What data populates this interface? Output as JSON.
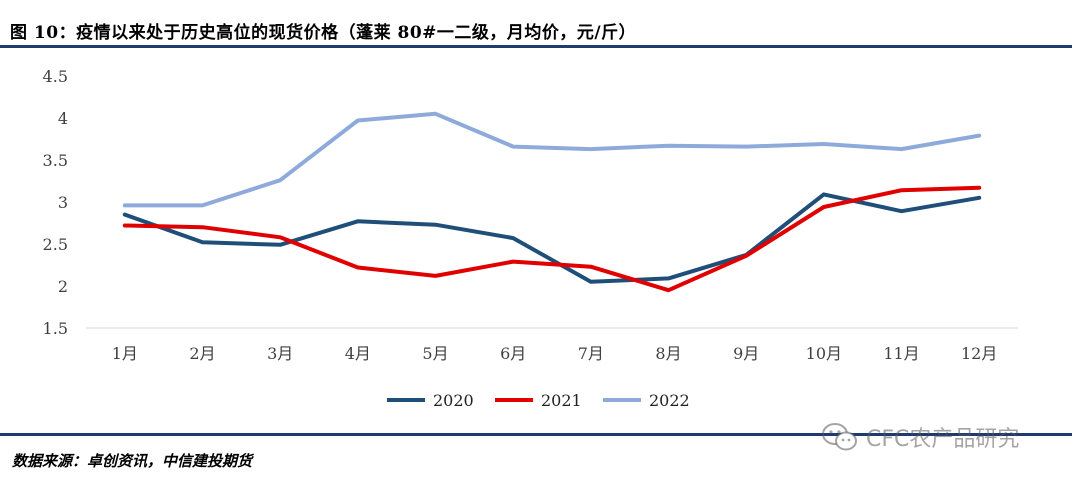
{
  "header": {
    "title": "图 10：疫情以来处于历史高位的现货价格（蓬莱 80#一二级，月均价，元/斤）"
  },
  "footer": {
    "source": "数据来源：卓创资讯，中信建投期货",
    "watermark": "CFC农产品研究"
  },
  "chart_data": {
    "type": "line",
    "title": "",
    "xlabel": "",
    "ylabel": "",
    "categories": [
      "1月",
      "2月",
      "3月",
      "4月",
      "5月",
      "6月",
      "7月",
      "8月",
      "9月",
      "10月",
      "11月",
      "12月"
    ],
    "ylim": [
      1.5,
      4.5
    ],
    "yticks": [
      1.5,
      2,
      2.5,
      3,
      3.5,
      4,
      4.5
    ],
    "ytick_labels": [
      "1.5",
      "2",
      "2.5",
      "3",
      "3.5",
      "4",
      "4.5"
    ],
    "grid": false,
    "legend_position": "bottom-center",
    "series": [
      {
        "name": "2020",
        "color": "#1f4e79",
        "values": [
          2.85,
          2.52,
          2.49,
          2.77,
          2.73,
          2.57,
          2.05,
          2.09,
          2.37,
          3.09,
          2.89,
          3.05
        ]
      },
      {
        "name": "2021",
        "color": "#e00000",
        "values": [
          2.72,
          2.7,
          2.58,
          2.22,
          2.12,
          2.29,
          2.23,
          1.95,
          2.36,
          2.94,
          3.14,
          3.17
        ]
      },
      {
        "name": "2022",
        "color": "#8eaadb",
        "values": [
          2.96,
          2.96,
          3.26,
          3.97,
          4.05,
          3.66,
          3.63,
          3.67,
          3.66,
          3.69,
          3.63,
          3.79
        ]
      }
    ]
  }
}
